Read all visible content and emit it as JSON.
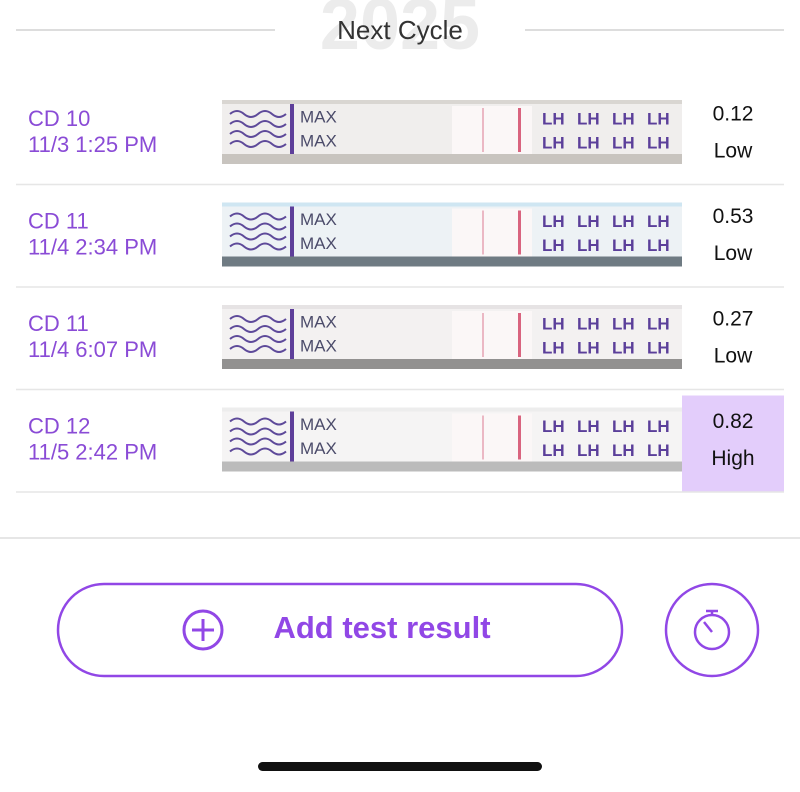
{
  "header": {
    "watermark": "2025",
    "title": "Next Cycle"
  },
  "strip": {
    "brand": "MAX",
    "line": "LH"
  },
  "results": [
    {
      "cycle_day": "CD 10",
      "time": "11/3 1:25 PM",
      "value": 0.12,
      "level": "Low",
      "highlighted": false
    },
    {
      "cycle_day": "CD 11",
      "time": "11/4 2:34 PM",
      "value": 0.53,
      "level": "Low",
      "highlighted": false
    },
    {
      "cycle_day": "CD 11",
      "time": "11/4 6:07 PM",
      "value": 0.27,
      "level": "Low",
      "highlighted": false
    },
    {
      "cycle_day": "CD 12",
      "time": "11/5 2:42 PM",
      "value": 0.82,
      "level": "High",
      "highlighted": true
    }
  ],
  "actions": {
    "add": "Add test result"
  }
}
